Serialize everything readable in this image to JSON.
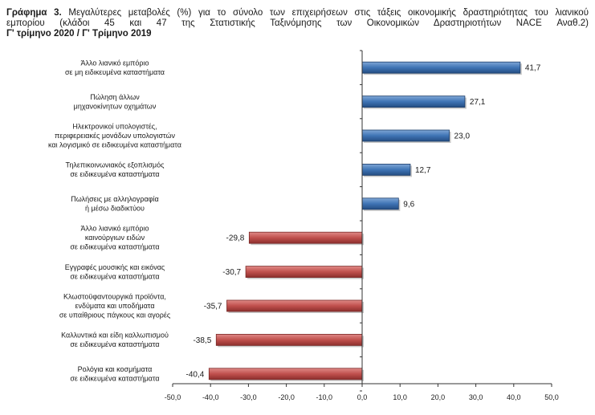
{
  "header": {
    "label": "Γράφημα 3.",
    "line1": "Μεγαλύτερες μεταβολές (%) για το σύνολο των επιχειρήσεων στις τάξεις οικονομικής δραστηριότητας του λιανικού",
    "line2": "εμπορίου (κλάδοι 45 και 47 της Στατιστικής Ταξινόμησης των Οικονομικών Δραστηριοτήτων NACE Αναθ.2)",
    "line3": "Γ' τρίμηνο 2020 / Γ' Τρίμηνο 2019"
  },
  "chart_data": {
    "type": "bar",
    "orientation": "horizontal",
    "categories": [
      [
        "Άλλο λιανικό εμπόριο",
        "σε μη ειδικευμένα καταστήματα"
      ],
      [
        "Πώληση άλλων",
        "μηχανοκίνητων οχημάτων"
      ],
      [
        "Ηλεκτρονικοί υπολογιστές,",
        "περιφερειακές μονάδων υπολογιστών",
        "και λογισμικό σε ειδικευμένα καταστήματα"
      ],
      [
        "Τηλεπικοινωνιακός εξοπλισμός",
        "σε ειδικευμένα καταστήματα"
      ],
      [
        "Πωλήσεις με αλληλογραφία",
        "ή μέσω διαδικτύου"
      ],
      [
        "Άλλο λιανικό εμπόριο",
        "καινούργιων ειδών",
        "σε ειδικευμένα καταστήματα"
      ],
      [
        "Εγγραφές μουσικής και εικόνας",
        "σε ειδικευμένα καταστήματα"
      ],
      [
        "Κλωστοϋφαντουργικά προϊόντα,",
        "ενδύματα και υποδήματα",
        "σε υπαίθριους πάγκους και αγορές"
      ],
      [
        "Καλλυντικά και είδη καλλωπισμού",
        "σε ειδικευμένα καταστήματα"
      ],
      [
        "Ρολόγια και κοσμήματα",
        "σε ειδικευμένα καταστήματα"
      ]
    ],
    "values": [
      41.7,
      27.1,
      23.0,
      12.7,
      9.6,
      -29.8,
      -30.7,
      -35.7,
      -38.5,
      -40.4
    ],
    "value_labels": [
      "41,7",
      "27,1",
      "23,0",
      "12,7",
      "9,6",
      "-29,8",
      "-30,7",
      "-35,7",
      "-38,5",
      "-40,4"
    ],
    "xlim": [
      -50,
      50
    ],
    "ticks": [
      -50,
      -40,
      -30,
      -20,
      -10,
      0,
      10,
      20,
      30,
      40,
      50
    ],
    "tick_labels": [
      "-50,0",
      "-40,0",
      "-30,0",
      "-20,0",
      "-10,0",
      "0,0",
      "10,0",
      "20,0",
      "30,0",
      "40,0",
      "50,0"
    ],
    "colors": {
      "positive": "#3a6fb0",
      "negative": "#c0504d",
      "positive_edge": "#1f3f6a",
      "negative_edge": "#7a2a28"
    },
    "grid": false
  }
}
